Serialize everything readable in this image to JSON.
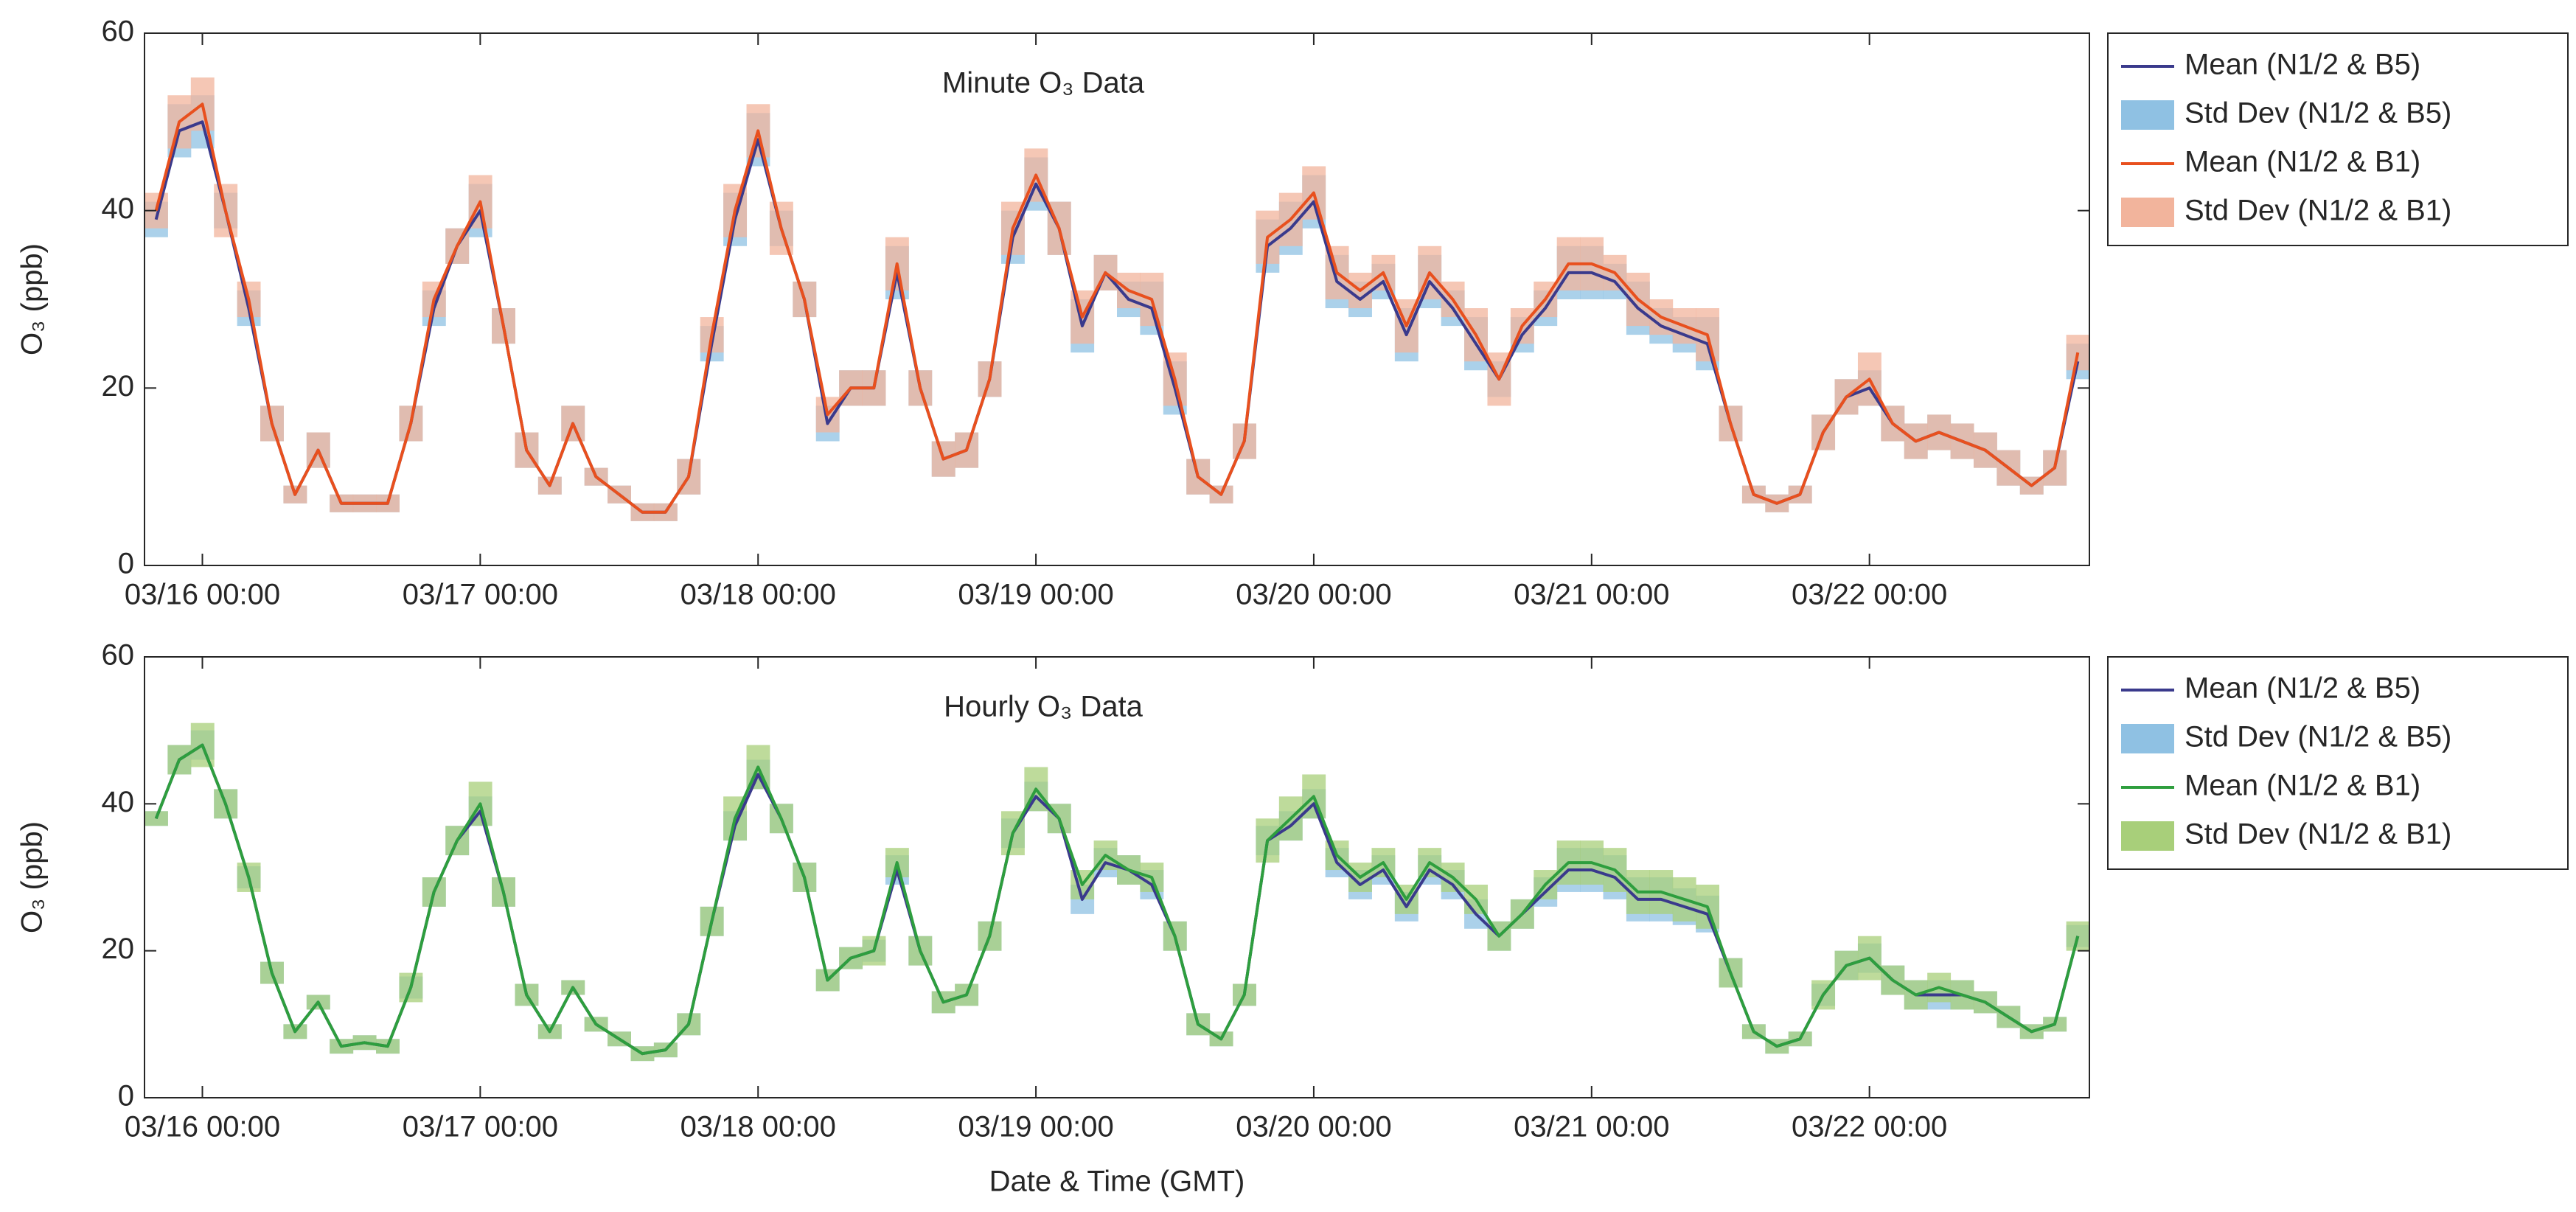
{
  "chart_data": [
    {
      "type": "line",
      "title": "Minute O₃ Data",
      "ylabel": "O₃ (ppb)",
      "xlim": [
        "03/15 19:00",
        "03/22 19:00"
      ],
      "xticks": [
        "03/16 00:00",
        "03/17 00:00",
        "03/18 00:00",
        "03/19 00:00",
        "03/20 00:00",
        "03/21 00:00",
        "03/22 00:00"
      ],
      "ylim": [
        0,
        60
      ],
      "yticks": [
        0,
        20,
        40,
        60
      ],
      "legend": "outside-right",
      "x": [
        "03/15 20:00",
        "03/15 22:00",
        "03/16 00:00",
        "03/16 02:00",
        "03/16 04:00",
        "03/16 06:00",
        "03/16 08:00",
        "03/16 10:00",
        "03/16 12:00",
        "03/16 14:00",
        "03/16 16:00",
        "03/16 18:00",
        "03/16 20:00",
        "03/16 22:00",
        "03/17 00:00",
        "03/17 02:00",
        "03/17 04:00",
        "03/17 06:00",
        "03/17 08:00",
        "03/17 10:00",
        "03/17 12:00",
        "03/17 14:00",
        "03/17 16:00",
        "03/17 18:00",
        "03/17 20:00",
        "03/17 22:00",
        "03/18 00:00",
        "03/18 02:00",
        "03/18 04:00",
        "03/18 06:00",
        "03/18 08:00",
        "03/18 10:00",
        "03/18 12:00",
        "03/18 14:00",
        "03/18 16:00",
        "03/18 18:00",
        "03/18 20:00",
        "03/18 22:00",
        "03/19 00:00",
        "03/19 02:00",
        "03/19 04:00",
        "03/19 06:00",
        "03/19 08:00",
        "03/19 10:00",
        "03/19 12:00",
        "03/19 14:00",
        "03/19 16:00",
        "03/19 18:00",
        "03/19 20:00",
        "03/19 22:00",
        "03/20 00:00",
        "03/20 02:00",
        "03/20 04:00",
        "03/20 06:00",
        "03/20 08:00",
        "03/20 10:00",
        "03/20 12:00",
        "03/20 14:00",
        "03/20 16:00",
        "03/20 18:00",
        "03/20 20:00",
        "03/20 22:00",
        "03/21 00:00",
        "03/21 02:00",
        "03/21 04:00",
        "03/21 06:00",
        "03/21 08:00",
        "03/21 10:00",
        "03/21 12:00",
        "03/21 14:00",
        "03/21 16:00",
        "03/21 18:00",
        "03/21 20:00",
        "03/21 22:00",
        "03/22 00:00",
        "03/22 02:00",
        "03/22 04:00",
        "03/22 06:00",
        "03/22 08:00",
        "03/22 10:00",
        "03/22 12:00",
        "03/22 14:00",
        "03/22 16:00",
        "03/22 18:00"
      ],
      "series": [
        {
          "name": "Mean (N1/2 & B5)",
          "color": "#3a3a8c",
          "values": [
            39,
            49,
            50,
            40,
            29,
            16,
            8,
            13,
            7,
            7,
            7,
            16,
            29,
            36,
            40,
            27,
            13,
            9,
            16,
            10,
            8,
            6,
            6,
            10,
            25,
            39,
            48,
            38,
            30,
            16,
            20,
            20,
            33,
            20,
            12,
            13,
            21,
            37,
            43,
            38,
            27,
            33,
            30,
            29,
            20,
            10,
            8,
            14,
            36,
            38,
            41,
            32,
            30,
            32,
            26,
            32,
            29,
            25,
            21,
            26,
            29,
            33,
            33,
            32,
            29,
            27,
            26,
            25,
            16,
            8,
            7,
            8,
            15,
            19,
            20,
            16,
            14,
            15,
            14,
            13,
            11,
            9,
            11,
            23
          ],
          "std": {
            "name": "Std Dev (N1/2 & B5)",
            "color": "#8fc1e3",
            "values": [
              2,
              3,
              3,
              2,
              2,
              2,
              1,
              2,
              1,
              1,
              1,
              2,
              2,
              2,
              3,
              2,
              2,
              1,
              2,
              1,
              1,
              1,
              1,
              2,
              2,
              3,
              3,
              2,
              2,
              2,
              2,
              2,
              3,
              2,
              2,
              2,
              2,
              3,
              3,
              3,
              3,
              2,
              2,
              3,
              3,
              2,
              1,
              2,
              3,
              3,
              3,
              3,
              2,
              2,
              3,
              3,
              2,
              3,
              2,
              2,
              2,
              3,
              3,
              2,
              3,
              2,
              2,
              3,
              2,
              1,
              1,
              1,
              2,
              2,
              2,
              2,
              2,
              2,
              2,
              2,
              2,
              1,
              2,
              2
            ]
          }
        },
        {
          "name": "Mean (N1/2 & B1)",
          "color": "#e8501e",
          "values": [
            40,
            50,
            52,
            40,
            30,
            16,
            8,
            13,
            7,
            7,
            7,
            16,
            30,
            36,
            41,
            27,
            13,
            9,
            16,
            10,
            8,
            6,
            6,
            10,
            26,
            40,
            49,
            38,
            30,
            17,
            20,
            20,
            34,
            20,
            12,
            13,
            21,
            38,
            44,
            38,
            28,
            33,
            31,
            30,
            21,
            10,
            8,
            14,
            37,
            39,
            42,
            33,
            31,
            33,
            27,
            33,
            30,
            26,
            21,
            27,
            30,
            34,
            34,
            33,
            30,
            28,
            27,
            26,
            16,
            8,
            7,
            8,
            15,
            19,
            21,
            16,
            14,
            15,
            14,
            13,
            11,
            9,
            11,
            24
          ],
          "std": {
            "name": "Std Dev (N1/2 & B1)",
            "color": "#f2b49c",
            "values": [
              2,
              3,
              3,
              3,
              2,
              2,
              1,
              2,
              1,
              1,
              1,
              2,
              2,
              2,
              3,
              2,
              2,
              1,
              2,
              1,
              1,
              1,
              1,
              2,
              2,
              3,
              3,
              3,
              2,
              2,
              2,
              2,
              3,
              2,
              2,
              2,
              2,
              3,
              3,
              3,
              3,
              2,
              2,
              3,
              3,
              2,
              1,
              2,
              3,
              3,
              3,
              3,
              2,
              2,
              3,
              3,
              2,
              3,
              3,
              2,
              2,
              3,
              3,
              2,
              3,
              2,
              2,
              3,
              2,
              1,
              1,
              1,
              2,
              2,
              3,
              2,
              2,
              2,
              2,
              2,
              2,
              1,
              2,
              2
            ]
          }
        }
      ]
    },
    {
      "type": "line",
      "title": "Hourly O₃ Data",
      "ylabel": "O₃ (ppb)",
      "xlabel": "Date & Time (GMT)",
      "xlim": [
        "03/15 19:00",
        "03/22 19:00"
      ],
      "xticks": [
        "03/16 00:00",
        "03/17 00:00",
        "03/18 00:00",
        "03/19 00:00",
        "03/20 00:00",
        "03/21 00:00",
        "03/22 00:00"
      ],
      "ylim": [
        0,
        60
      ],
      "yticks": [
        0,
        20,
        40,
        60
      ],
      "legend": "outside-right",
      "x": [
        "03/15 20:00",
        "03/15 22:00",
        "03/16 00:00",
        "03/16 02:00",
        "03/16 04:00",
        "03/16 06:00",
        "03/16 08:00",
        "03/16 10:00",
        "03/16 12:00",
        "03/16 14:00",
        "03/16 16:00",
        "03/16 18:00",
        "03/16 20:00",
        "03/16 22:00",
        "03/17 00:00",
        "03/17 02:00",
        "03/17 04:00",
        "03/17 06:00",
        "03/17 08:00",
        "03/17 10:00",
        "03/17 12:00",
        "03/17 14:00",
        "03/17 16:00",
        "03/17 18:00",
        "03/17 20:00",
        "03/17 22:00",
        "03/18 00:00",
        "03/18 02:00",
        "03/18 04:00",
        "03/18 06:00",
        "03/18 08:00",
        "03/18 10:00",
        "03/18 12:00",
        "03/18 14:00",
        "03/18 16:00",
        "03/18 18:00",
        "03/18 20:00",
        "03/18 22:00",
        "03/19 00:00",
        "03/19 02:00",
        "03/19 04:00",
        "03/19 06:00",
        "03/19 08:00",
        "03/19 10:00",
        "03/19 12:00",
        "03/19 14:00",
        "03/19 16:00",
        "03/19 18:00",
        "03/19 20:00",
        "03/19 22:00",
        "03/20 00:00",
        "03/20 02:00",
        "03/20 04:00",
        "03/20 06:00",
        "03/20 08:00",
        "03/20 10:00",
        "03/20 12:00",
        "03/20 14:00",
        "03/20 16:00",
        "03/20 18:00",
        "03/20 20:00",
        "03/20 22:00",
        "03/21 00:00",
        "03/21 02:00",
        "03/21 04:00",
        "03/21 06:00",
        "03/21 08:00",
        "03/21 10:00",
        "03/21 12:00",
        "03/21 14:00",
        "03/21 16:00",
        "03/21 18:00",
        "03/21 20:00",
        "03/21 22:00",
        "03/22 00:00",
        "03/22 02:00",
        "03/22 04:00",
        "03/22 06:00",
        "03/22 08:00",
        "03/22 10:00",
        "03/22 12:00",
        "03/22 14:00",
        "03/22 16:00",
        "03/22 18:00"
      ],
      "series": [
        {
          "name": "Mean (N1/2 & B5)",
          "color": "#3a3a8c",
          "values": [
            38,
            46,
            48,
            40,
            30,
            17,
            9,
            13,
            7,
            7.5,
            7,
            15,
            28,
            35,
            39,
            28,
            14,
            9,
            15,
            10,
            8,
            6,
            6.5,
            10,
            24,
            37,
            44,
            38,
            30,
            16,
            19,
            20,
            31,
            20,
            13,
            14,
            22,
            36,
            41,
            38,
            27,
            32,
            31,
            29,
            22,
            10,
            8,
            14,
            35,
            37,
            40,
            32,
            29,
            31,
            26,
            31,
            29,
            25,
            22,
            25,
            28,
            31,
            31,
            30,
            27,
            27,
            26,
            25,
            17,
            9,
            7,
            8,
            14,
            18,
            19,
            16,
            14,
            14,
            14,
            13,
            11,
            9,
            10,
            22
          ],
          "std": {
            "name": "Std Dev (N1/2 & B5)",
            "color": "#8fc1e3",
            "values": [
              1,
              2,
              2,
              2,
              1.5,
              1.5,
              1,
              1,
              1,
              1,
              1,
              1.5,
              2,
              2,
              2,
              2,
              1.5,
              1,
              1,
              1,
              1,
              1,
              1,
              1.5,
              2,
              2,
              2,
              2,
              2,
              1.5,
              1.5,
              1.5,
              2,
              2,
              1.5,
              1.5,
              2,
              2,
              2,
              2,
              2,
              2,
              2,
              2,
              2,
              1.5,
              1,
              1.5,
              2,
              2,
              2,
              2,
              2,
              2,
              2,
              2,
              2,
              2,
              2,
              2,
              2,
              3,
              3,
              3,
              3,
              3,
              2.5,
              2.5,
              2,
              1,
              1,
              1,
              1.5,
              2,
              2,
              2,
              2,
              2,
              2,
              1.5,
              1.5,
              1,
              1,
              1.5
            ]
          }
        },
        {
          "name": "Mean (N1/2 & B1)",
          "color": "#2e9e3e",
          "values": [
            38,
            46,
            48,
            40,
            30,
            17,
            9,
            13,
            7,
            7.5,
            7,
            15,
            28,
            35,
            40,
            28,
            14,
            9,
            15,
            10,
            8,
            6,
            6.5,
            10,
            24,
            38,
            45,
            38,
            30,
            16,
            19,
            20,
            32,
            20,
            13,
            14,
            22,
            36,
            42,
            38,
            29,
            33,
            31,
            30,
            22,
            10,
            8,
            14,
            35,
            38,
            41,
            33,
            30,
            32,
            27,
            32,
            30,
            27,
            22,
            25,
            29,
            32,
            32,
            31,
            28,
            28,
            27,
            26,
            17,
            9,
            7,
            8,
            14,
            18,
            19,
            16,
            14,
            15,
            14,
            13,
            11,
            9,
            10,
            22
          ],
          "std": {
            "name": "Std Dev (N1/2 & B1)",
            "color": "#a8cf7a",
            "values": [
              1,
              2,
              3,
              2,
              2,
              1.5,
              1,
              1,
              1,
              1,
              1,
              2,
              2,
              2,
              3,
              2,
              1.5,
              1,
              1,
              1,
              1,
              1,
              1,
              1.5,
              2,
              3,
              3,
              2,
              2,
              1.5,
              1.5,
              2,
              2,
              2,
              1.5,
              1.5,
              2,
              3,
              3,
              2,
              2,
              2,
              2,
              2,
              2,
              1.5,
              1,
              1.5,
              3,
              3,
              3,
              2,
              2,
              2,
              2,
              2,
              2,
              2,
              2,
              2,
              2,
              3,
              3,
              3,
              3,
              3,
              3,
              3,
              2,
              1,
              1,
              1,
              2,
              2,
              3,
              2,
              2,
              2,
              2,
              1.5,
              1.5,
              1,
              1,
              2
            ]
          }
        }
      ]
    }
  ]
}
